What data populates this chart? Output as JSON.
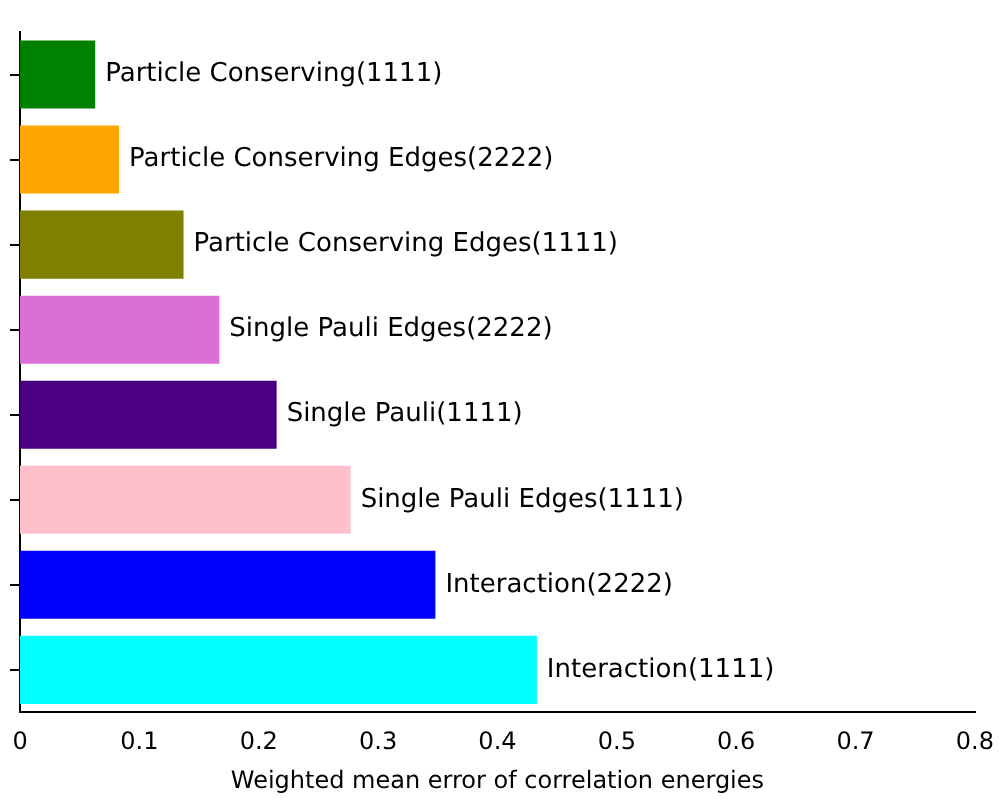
{
  "chart_data": {
    "type": "bar",
    "orientation": "horizontal",
    "xlabel": "Weighted mean error of correlation energies",
    "categories": [
      "Particle Conserving(1111)",
      "Particle Conserving Edges(2222)",
      "Particle Conserving Edges(1111)",
      "Single Pauli Edges(2222)",
      "Single Pauli(1111)",
      "Single Pauli Edges(1111)",
      "Interaction(2222)",
      "Interaction(1111)"
    ],
    "values": [
      0.063,
      0.083,
      0.137,
      0.167,
      0.215,
      0.277,
      0.348,
      0.433
    ],
    "colors": [
      "#008000",
      "#ffa500",
      "#808000",
      "#da70d6",
      "#4b0082",
      "#ffc0cb",
      "#0000ff",
      "#00ffff"
    ],
    "xlim": [
      0,
      0.8
    ],
    "xticks": [
      0,
      0.1,
      0.2,
      0.3,
      0.4,
      0.5,
      0.6,
      0.7,
      0.8
    ],
    "tick_labels": "x",
    "grid": false,
    "legend": false
  }
}
